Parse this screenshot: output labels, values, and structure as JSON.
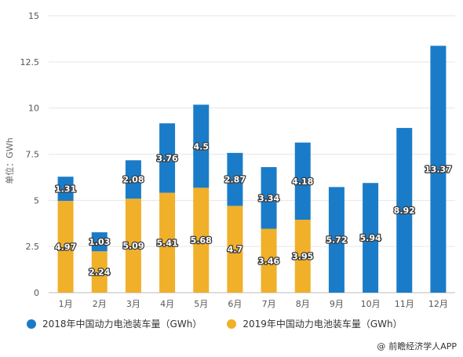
{
  "chart_data": {
    "type": "bar",
    "stacked": true,
    "categories": [
      "1月",
      "2月",
      "3月",
      "4月",
      "5月",
      "6月",
      "7月",
      "8月",
      "9月",
      "10月",
      "11月",
      "12月"
    ],
    "series": [
      {
        "name": "2019年中国动力电池装车量（GWh）",
        "color": "#F0B02A",
        "values": [
          4.97,
          2.24,
          5.09,
          5.41,
          5.68,
          4.7,
          3.46,
          3.95,
          null,
          null,
          null,
          null
        ],
        "labels": [
          "4.97",
          "2.24",
          "5.09",
          "5.41",
          "5.68",
          "4.7",
          "3.46",
          "3.95",
          "",
          "",
          "",
          ""
        ]
      },
      {
        "name": "2018年中国动力电池装车量（GWh）",
        "color": "#1A7CC8",
        "values": [
          1.31,
          1.03,
          2.08,
          3.76,
          4.5,
          2.87,
          3.34,
          4.18,
          5.72,
          5.94,
          8.92,
          13.37
        ],
        "labels": [
          "1.31",
          "1.03",
          "2.08",
          "3.76",
          "4.5",
          "2.87",
          "3.34",
          "4.18",
          "5.72",
          "5.94",
          "8.92",
          "13.37"
        ]
      }
    ],
    "ylabel": "单位：GWh",
    "ylim": [
      0,
      15
    ],
    "yticks": [
      0,
      2.5,
      5,
      7.5,
      10,
      12.5,
      15
    ],
    "ytick_labels": [
      "0",
      "2.5",
      "5",
      "7.5",
      "10",
      "12.5",
      "15"
    ],
    "grid": true,
    "legend_position": "bottom"
  },
  "legend": {
    "item_2018": "2018年中国动力电池装车量（GWh）",
    "item_2019": "2019年中国动力电池装车量（GWh）",
    "color_2018": "#1A7CC8",
    "color_2019": "#F0B02A"
  },
  "source": {
    "icon": "at-icon",
    "glyph": "@",
    "text": "前瞻经济学人APP"
  }
}
